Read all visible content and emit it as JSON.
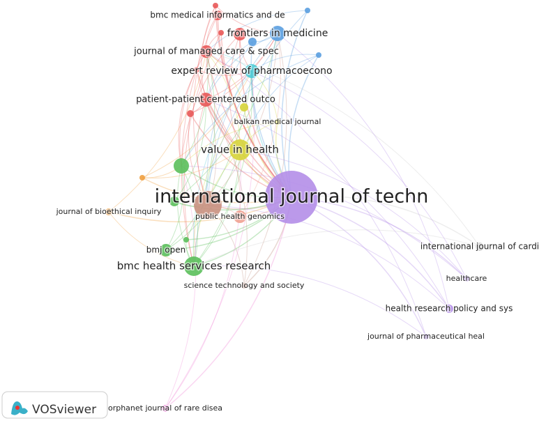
{
  "nodes": [
    {
      "label": "international journal of techn"
    },
    {
      "label": "value in health"
    },
    {
      "label": "bmc health services research"
    },
    {
      "label": "frontiers in medicine"
    },
    {
      "label": "expert review of pharmacoecono"
    },
    {
      "label": "journal of managed care & spec"
    },
    {
      "label": "patient-patient centered outco"
    },
    {
      "label": "bmc medical informatics and de"
    },
    {
      "label": "balkan medical journal"
    },
    {
      "label": "public health genomics"
    },
    {
      "label": "journal of bioethical inquiry"
    },
    {
      "label": "bmj open"
    },
    {
      "label": "science technology and society"
    },
    {
      "label": "international journal of cardi"
    },
    {
      "label": "healthcare"
    },
    {
      "label": "health research policy and sys"
    },
    {
      "label": "journal of pharmaceutical heal"
    },
    {
      "label": "orphanet journal of rare disea"
    }
  ],
  "logo": "VOSviewer"
}
